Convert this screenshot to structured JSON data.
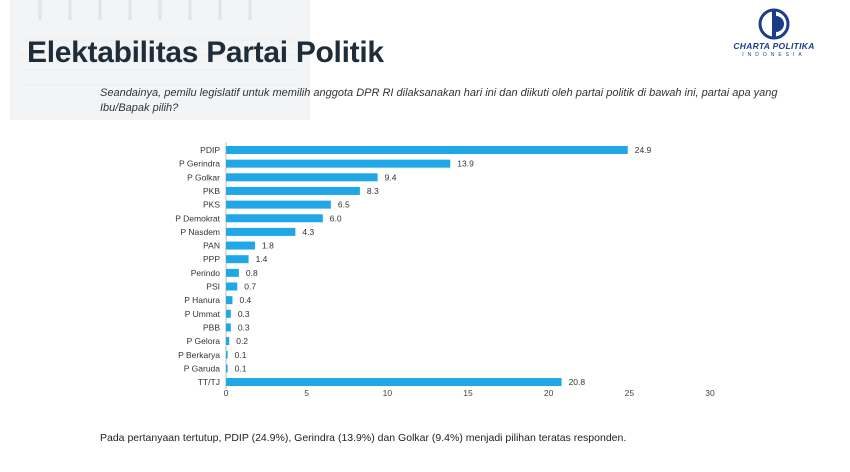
{
  "title": "Elektabilitas Partai Politik",
  "logo": {
    "name": "CHARTA POLITIKA",
    "sub": "INDONESIA",
    "brand_color": "#1a3d8a"
  },
  "question": "Seandainya, pemilu legislatif untuk memilih anggota DPR RI dilaksanakan hari ini dan diikuti oleh partai politik di bawah ini, partai apa yang Ibu/Bapak pilih?",
  "footnote": "Pada pertanyaan tertutup, PDIP (24.9%), Gerindra (13.9%) dan Golkar (9.4%) menjadi pilihan teratas responden.",
  "chart_data": {
    "type": "bar",
    "orientation": "horizontal",
    "categories": [
      "PDIP",
      "P Gerindra",
      "P Golkar",
      "PKB",
      "PKS",
      "P Demokrat",
      "P Nasdem",
      "PAN",
      "PPP",
      "Perindo",
      "PSI",
      "P Hanura",
      "P Ummat",
      "PBB",
      "P Gelora",
      "P Berkarya",
      "P Garuda",
      "TT/TJ"
    ],
    "values": [
      24.9,
      13.9,
      9.4,
      8.3,
      6.5,
      6.0,
      4.3,
      1.8,
      1.4,
      0.8,
      0.7,
      0.4,
      0.3,
      0.3,
      0.2,
      0.1,
      0.1,
      20.8
    ],
    "value_labels": [
      "24.9",
      "13.9",
      "9.4",
      "8.3",
      "6.5",
      "6.0",
      "4.3",
      "1.8",
      "1.4",
      "0.8",
      "0.7",
      "0.4",
      "0.3",
      "0.3",
      "0.2",
      "0.1",
      "0.1",
      "20.8"
    ],
    "xticks": [
      "0",
      "5",
      "10",
      "15",
      "20",
      "25",
      "30"
    ],
    "xlim": [
      0,
      30
    ],
    "grid": false,
    "bar_color": "#1fa7e6"
  }
}
